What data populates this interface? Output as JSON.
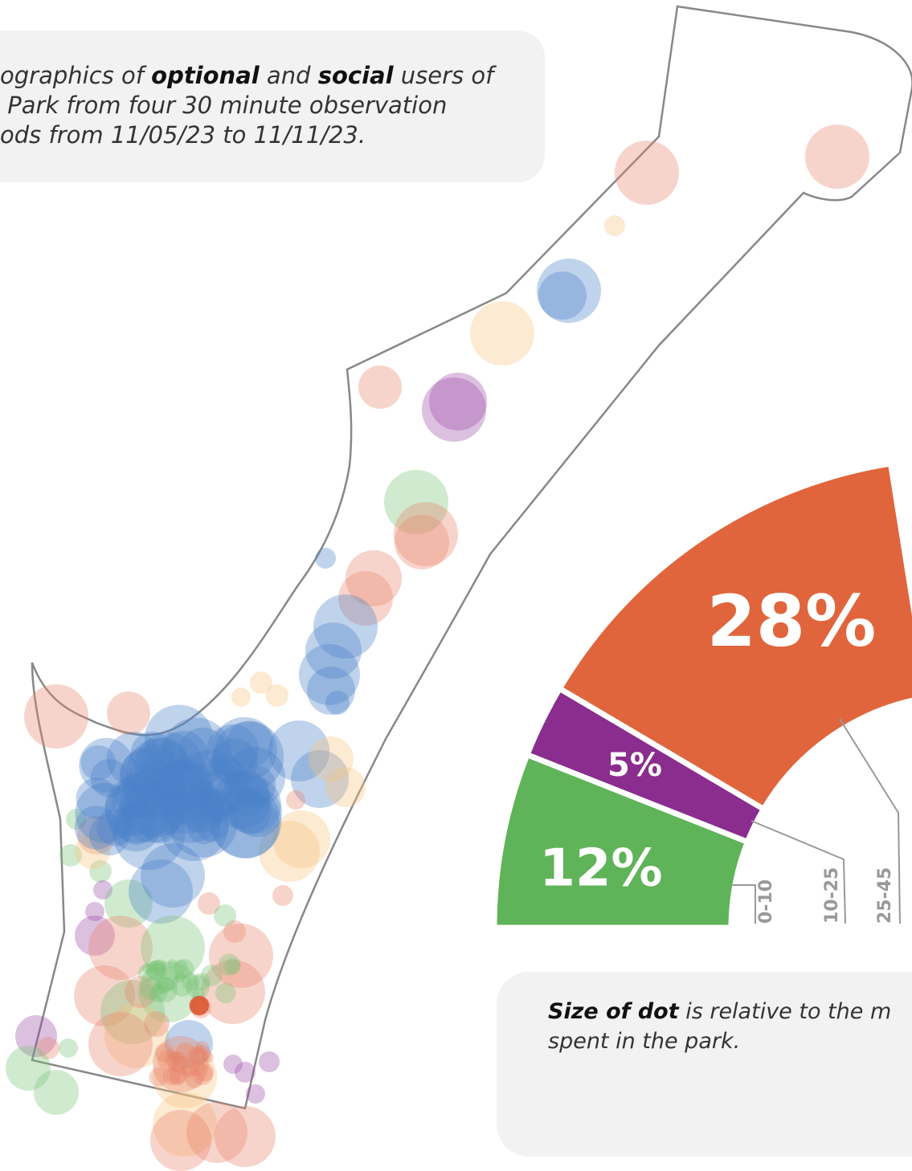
{
  "intro": {
    "lines": [
      [
        "ographics of ",
        "optional",
        " and ",
        "social",
        " users of"
      ],
      [
        " Park from four 30 minute observation"
      ],
      [
        "ods from 11/05/23 to 11/11/23."
      ]
    ]
  },
  "chart_data": {
    "type": "half-donut",
    "max_total": 100,
    "categories": [
      "0-10",
      "10-25",
      "25-45"
    ],
    "values": [
      12,
      5,
      28
    ],
    "value_labels": [
      "12%",
      "5%",
      "28%"
    ],
    "colors": [
      "#5fb358",
      "#8a2d8e",
      "#e0653c"
    ]
  },
  "note": {
    "bold": "Size of dot",
    "rest": " is relative to the m",
    "line2": "spent in the park."
  }
}
